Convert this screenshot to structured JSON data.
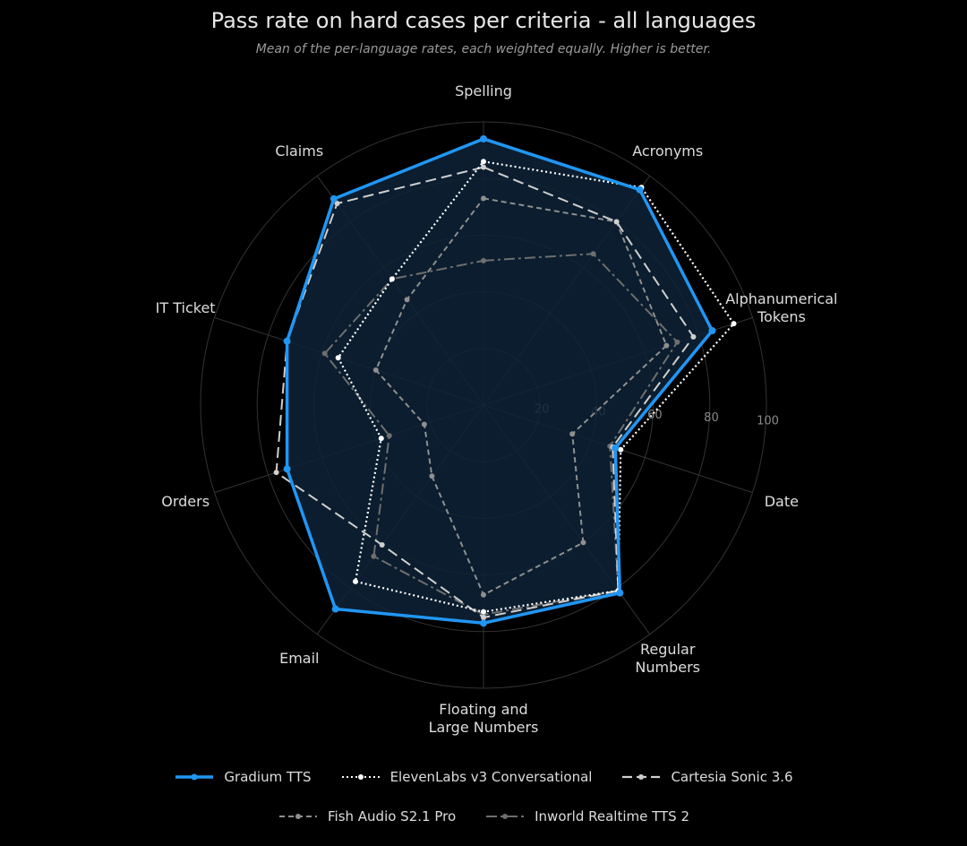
{
  "title": "Pass rate on hard cases per criteria - all languages",
  "subtitle": "Mean of the per-language rates, each weighted equally. Higher is better.",
  "chart_data": {
    "type": "radar",
    "title": "Pass rate on hard cases per criteria - all languages",
    "subtitle": "Mean of the per-language rates, each weighted equally. Higher is better.",
    "categories": [
      "Spelling",
      "Acronyms",
      "Alphanumerical Tokens",
      "Date",
      "Regular Numbers",
      "Floating and Large Numbers",
      "Email",
      "Orders",
      "IT Ticket",
      "Claims"
    ],
    "category_labels": [
      [
        "Spelling"
      ],
      [
        "Acronyms"
      ],
      [
        "Alphanumerical",
        "Tokens"
      ],
      [
        "Date"
      ],
      [
        "Regular",
        "Numbers"
      ],
      [
        "Floating and",
        "Large Numbers"
      ],
      [
        "Email"
      ],
      [
        "Orders"
      ],
      [
        "IT Ticket"
      ],
      [
        "Claims"
      ]
    ],
    "rlim": [
      0,
      100
    ],
    "rticks": [
      20,
      40,
      60,
      80,
      100
    ],
    "grid": true,
    "legend_position": "bottom",
    "series": [
      {
        "name": "Gradium TTS",
        "values": [
          94,
          94,
          85,
          49,
          82,
          77,
          89,
          73,
          73,
          90
        ],
        "color": "#2196f3",
        "style": "solid",
        "fill": "#0d2236"
      },
      {
        "name": "ElevenLabs v3 Conversational",
        "values": [
          86,
          95,
          93,
          51,
          81,
          73,
          77,
          38,
          54,
          55
        ],
        "color": "#ffffff",
        "style": "dotted"
      },
      {
        "name": "Cartesia Sonic 3.6",
        "values": [
          84,
          80,
          78,
          48,
          81,
          75,
          61,
          77,
          73,
          88
        ],
        "color": "#cfcfcf",
        "style": "longdash"
      },
      {
        "name": "Fish Audio S2.1 Pro",
        "values": [
          73,
          80,
          68,
          33,
          60,
          67,
          31,
          22,
          40,
          46
        ],
        "color": "#8f8f8f",
        "style": "dashed"
      },
      {
        "name": "Inworld Realtime TTS 2",
        "values": [
          51,
          66,
          72,
          47,
          81,
          74,
          66,
          35,
          59,
          55
        ],
        "color": "#6e6e6e",
        "style": "dashdot"
      }
    ]
  }
}
